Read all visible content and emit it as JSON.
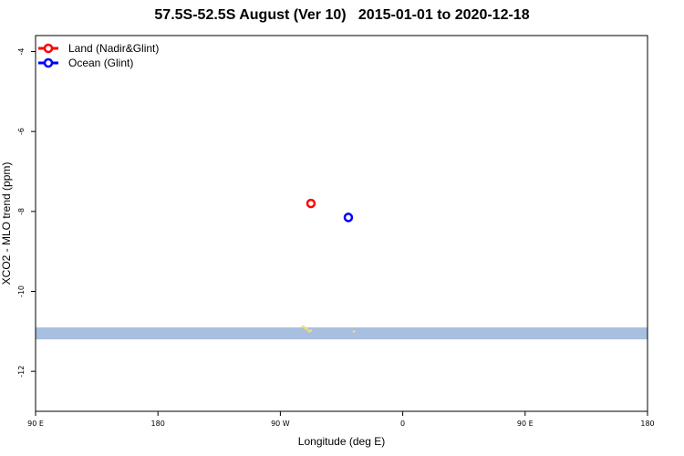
{
  "chart_data": {
    "type": "scatter",
    "title": "57.5S-52.5S August (Ver 10)   2015-01-01 to 2020-12-18",
    "xlabel": "Longitude (deg E)",
    "ylabel": "XCO2 - MLO trend (ppm)",
    "xlim": [
      90,
      450
    ],
    "ylim": [
      -13,
      -3.6
    ],
    "x_ticks": [
      {
        "value": 90,
        "label": "90 E"
      },
      {
        "value": 162,
        "label": "180"
      },
      {
        "value": 234,
        "label": "90 W"
      },
      {
        "value": 306,
        "label": "0"
      },
      {
        "value": 378,
        "label": "90 E"
      },
      {
        "value": 450,
        "label": "180"
      }
    ],
    "y_ticks": [
      -4,
      -6,
      -8,
      -10,
      -12
    ],
    "series": [
      {
        "name": "Land (Nadir&Glint)",
        "color": "#ff0000",
        "points": [
          {
            "x": 252,
            "y": -7.8
          }
        ]
      },
      {
        "name": "Ocean (Glint)",
        "color": "#0000ff",
        "points": [
          {
            "x": 274,
            "y": -8.15
          }
        ]
      }
    ],
    "background_map": {
      "ocean_color": "#a8bfdf",
      "land_color": "#f5dc7a",
      "lat_band": [
        -11.2,
        -10.9
      ]
    },
    "legend_position": "top-left",
    "grid": false
  }
}
